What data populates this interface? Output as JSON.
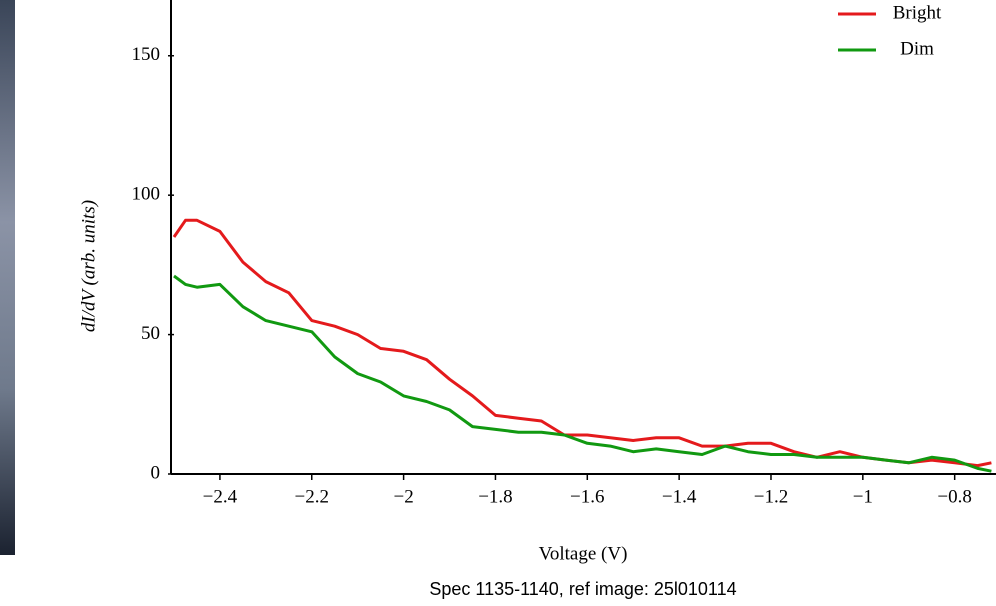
{
  "chart_data": {
    "type": "line",
    "subtitle": "Spec 1135-1140, ref image: 25l010114",
    "xlabel": "Voltage (V)",
    "ylabel": "dI/dV (arb. units)",
    "x": [
      -2.5,
      -2.475,
      -2.45,
      -2.4,
      -2.35,
      -2.3,
      -2.25,
      -2.2,
      -2.15,
      -2.1,
      -2.05,
      -2.0,
      -1.95,
      -1.9,
      -1.85,
      -1.8,
      -1.75,
      -1.7,
      -1.65,
      -1.6,
      -1.55,
      -1.5,
      -1.45,
      -1.4,
      -1.35,
      -1.3,
      -1.25,
      -1.2,
      -1.15,
      -1.1,
      -1.05,
      -1.0,
      -0.95,
      -0.9,
      -0.85,
      -0.8,
      -0.75,
      -0.72
    ],
    "series": [
      {
        "name": "Bright",
        "color": "#e41a1c",
        "values": [
          85,
          91,
          91,
          87,
          76,
          69,
          65,
          55,
          53,
          50,
          45,
          44,
          41,
          34,
          28,
          21,
          20,
          19,
          14,
          14,
          13,
          12,
          13,
          13,
          10,
          10,
          11,
          11,
          8,
          6,
          8,
          6,
          5,
          4,
          5,
          4,
          3,
          4
        ]
      },
      {
        "name": "Dim",
        "color": "#119911",
        "values": [
          71,
          68,
          67,
          68,
          60,
          55,
          53,
          51,
          42,
          36,
          33,
          28,
          26,
          23,
          17,
          16,
          15,
          15,
          14,
          11,
          10,
          8,
          9,
          8,
          7,
          10,
          8,
          7,
          7,
          6,
          6,
          6,
          5,
          4,
          6,
          5,
          2,
          1
        ]
      }
    ],
    "xlim": [
      -2.5,
      -0.71
    ],
    "ylim": [
      0,
      170
    ],
    "xticks": [
      {
        "value": -2.4,
        "label": "−2.4"
      },
      {
        "value": -2.2,
        "label": "−2.2"
      },
      {
        "value": -2,
        "label": "−2"
      },
      {
        "value": -1.8,
        "label": "−1.8"
      },
      {
        "value": -1.6,
        "label": "−1.6"
      },
      {
        "value": -1.4,
        "label": "−1.4"
      },
      {
        "value": -1.2,
        "label": "−1.2"
      },
      {
        "value": -1,
        "label": "−1"
      },
      {
        "value": -0.8,
        "label": "−0.8"
      }
    ],
    "yticks": [
      0,
      50,
      100,
      150
    ],
    "legend": "upper-right"
  }
}
